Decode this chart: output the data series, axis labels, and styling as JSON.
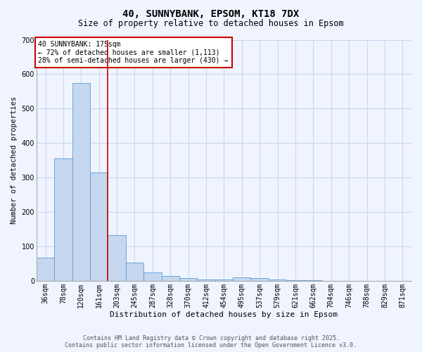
{
  "title_line1": "40, SUNNYBANK, EPSOM, KT18 7DX",
  "title_line2": "Size of property relative to detached houses in Epsom",
  "xlabel": "Distribution of detached houses by size in Epsom",
  "ylabel": "Number of detached properties",
  "categories": [
    "36sqm",
    "78sqm",
    "120sqm",
    "161sqm",
    "203sqm",
    "245sqm",
    "287sqm",
    "328sqm",
    "370sqm",
    "412sqm",
    "454sqm",
    "495sqm",
    "537sqm",
    "579sqm",
    "621sqm",
    "662sqm",
    "704sqm",
    "746sqm",
    "788sqm",
    "829sqm",
    "871sqm"
  ],
  "values": [
    67,
    355,
    575,
    315,
    133,
    52,
    25,
    14,
    7,
    4,
    4,
    10,
    9,
    3,
    1,
    1,
    0,
    0,
    0,
    0,
    0
  ],
  "bar_color": "#c5d8f0",
  "bar_edge_color": "#5b9bd5",
  "vline_index": 3.5,
  "vline_color": "#cc0000",
  "ylim": [
    0,
    700
  ],
  "yticks": [
    0,
    100,
    200,
    300,
    400,
    500,
    600,
    700
  ],
  "annotation_text": "40 SUNNYBANK: 175sqm\n← 72% of detached houses are smaller (1,113)\n28% of semi-detached houses are larger (430) →",
  "annotation_box_color": "#ffffff",
  "annotation_box_edge": "#cc0000",
  "footer_line1": "Contains HM Land Registry data © Crown copyright and database right 2025.",
  "footer_line2": "Contains public sector information licensed under the Open Government Licence v3.0.",
  "bg_color": "#f0f4ff",
  "grid_color": "#c8d8ee",
  "title_fontsize": 10,
  "subtitle_fontsize": 8.5,
  "xlabel_fontsize": 8,
  "ylabel_fontsize": 7.5,
  "tick_fontsize": 7,
  "annot_fontsize": 7,
  "footer_fontsize": 6
}
